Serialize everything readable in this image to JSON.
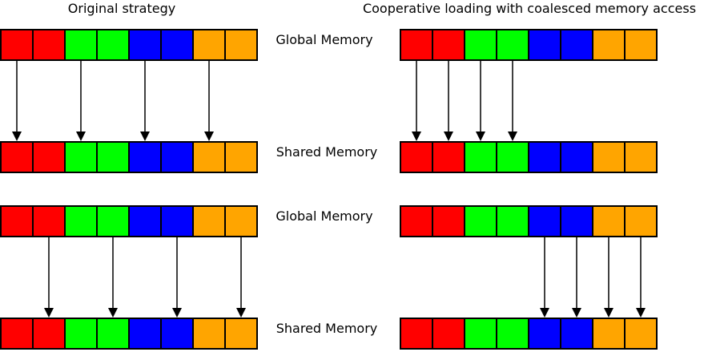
{
  "titles": {
    "left": "Original strategy",
    "right": "Cooperative loading with coalesced memory access"
  },
  "labels": {
    "global_top": "Global Memory",
    "shared_top": "Shared Memory",
    "global_bottom": "Global Memory",
    "shared_bottom": "Shared Memory"
  },
  "colors": {
    "red": "#ff0000",
    "green": "#00ff00",
    "blue": "#0000ff",
    "orange": "#ffa500"
  },
  "arrays": {
    "cell_colors": [
      "red",
      "red",
      "green",
      "green",
      "blue",
      "blue",
      "orange",
      "orange"
    ]
  },
  "transfers": {
    "left_top": [
      0,
      2,
      4,
      6
    ],
    "left_bottom": [
      1,
      3,
      5,
      7
    ],
    "right_top": [
      0,
      1,
      2,
      3
    ],
    "right_bottom": [
      4,
      5,
      6,
      7
    ]
  }
}
